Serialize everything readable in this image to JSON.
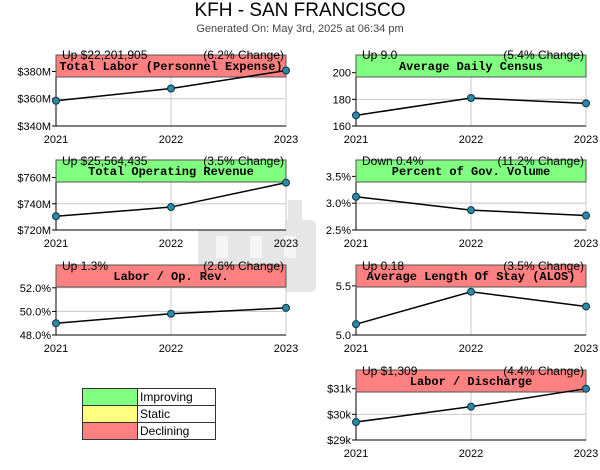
{
  "header": {
    "title": "KFH - SAN FRANCISCO",
    "generated": "Generated On: May 3rd, 2025 at 06:34 pm"
  },
  "colors": {
    "improving": "#80ff80",
    "static": "#ffff80",
    "declining": "#ff8080",
    "line": "#000000",
    "point": "#2a8aa8",
    "grid": "#c8c8c8"
  },
  "legend": {
    "items": [
      {
        "label": "Improving",
        "color": "#80ff80"
      },
      {
        "label": "Static",
        "color": "#ffff80"
      },
      {
        "label": "Declining",
        "color": "#ff8080"
      }
    ]
  },
  "chart_data": [
    {
      "type": "line",
      "title": "Total Labor (Personnel Expense)",
      "status": "declining",
      "summary_left": "Up $22,201,905",
      "summary_right": "(6.2% Change)",
      "x": [
        "2021",
        "2022",
        "2023"
      ],
      "values": [
        358.5,
        367.5,
        380.7
      ],
      "yticks": [
        340,
        360,
        380
      ],
      "ytick_labels": [
        "$340M",
        "$360M",
        "$380M"
      ],
      "ylim": [
        340,
        384
      ],
      "grid": true
    },
    {
      "type": "line",
      "title": "Average Daily Census",
      "status": "improving",
      "summary_left": "Up 9.0",
      "summary_right": "(5.4% Change)",
      "x": [
        "2021",
        "2022",
        "2023"
      ],
      "values": [
        168,
        181,
        177
      ],
      "yticks": [
        160,
        180,
        200
      ],
      "ytick_labels": [
        "160",
        "180",
        "200"
      ],
      "ylim": [
        160,
        205
      ],
      "grid": true
    },
    {
      "type": "line",
      "title": "Total Operating Revenue",
      "status": "improving",
      "summary_left": "Up $25,564,435",
      "summary_right": "(3.5% Change)",
      "x": [
        "2021",
        "2022",
        "2023"
      ],
      "values": [
        730.5,
        737.5,
        756.1
      ],
      "yticks": [
        720,
        740,
        760
      ],
      "ytick_labels": [
        "$720M",
        "$740M",
        "$760M"
      ],
      "ylim": [
        720,
        765
      ],
      "grid": true
    },
    {
      "type": "line",
      "title": "Percent of Gov. Volume",
      "status": "improving",
      "summary_left": "Down 0.4%",
      "summary_right": "(11.2% Change)",
      "x": [
        "2021",
        "2022",
        "2023"
      ],
      "values": [
        3.12,
        2.87,
        2.77
      ],
      "yticks": [
        2.5,
        3.0,
        3.5
      ],
      "ytick_labels": [
        "2.5%",
        "3.0%",
        "3.5%"
      ],
      "ylim": [
        2.5,
        3.6
      ],
      "grid": true
    },
    {
      "type": "line",
      "title": "Labor / Op. Rev.",
      "status": "declining",
      "summary_left": "Up 1.3%",
      "summary_right": "(2.6% Change)",
      "x": [
        "2021",
        "2022",
        "2023"
      ],
      "values": [
        49.0,
        49.8,
        50.3
      ],
      "yticks": [
        48.0,
        50.0,
        52.0
      ],
      "ytick_labels": [
        "48.0%",
        "50.0%",
        "52.0%"
      ],
      "ylim": [
        48,
        53
      ],
      "grid": true
    },
    {
      "type": "line",
      "title": "Average Length Of Stay (ALOS)",
      "status": "declining",
      "summary_left": "Up 0.18",
      "summary_right": "(3.5% Change)",
      "x": [
        "2021",
        "2022",
        "2023"
      ],
      "values": [
        5.11,
        5.44,
        5.29
      ],
      "yticks": [
        5.0,
        5.5
      ],
      "ytick_labels": [
        "5.0",
        "5.5"
      ],
      "ylim": [
        5.0,
        5.6
      ],
      "grid": true
    },
    {
      "type": "line",
      "title": "Labor / Discharge",
      "status": "declining",
      "summary_left": "Up $1,309",
      "summary_right": "(4.4% Change)",
      "x": [
        "2021",
        "2022",
        "2023"
      ],
      "values": [
        29.7,
        30.3,
        31.0
      ],
      "yticks": [
        29,
        30,
        31
      ],
      "ytick_labels": [
        "$29k",
        "$30k",
        "$31k"
      ],
      "ylim": [
        29,
        31.3
      ],
      "grid": true
    }
  ]
}
